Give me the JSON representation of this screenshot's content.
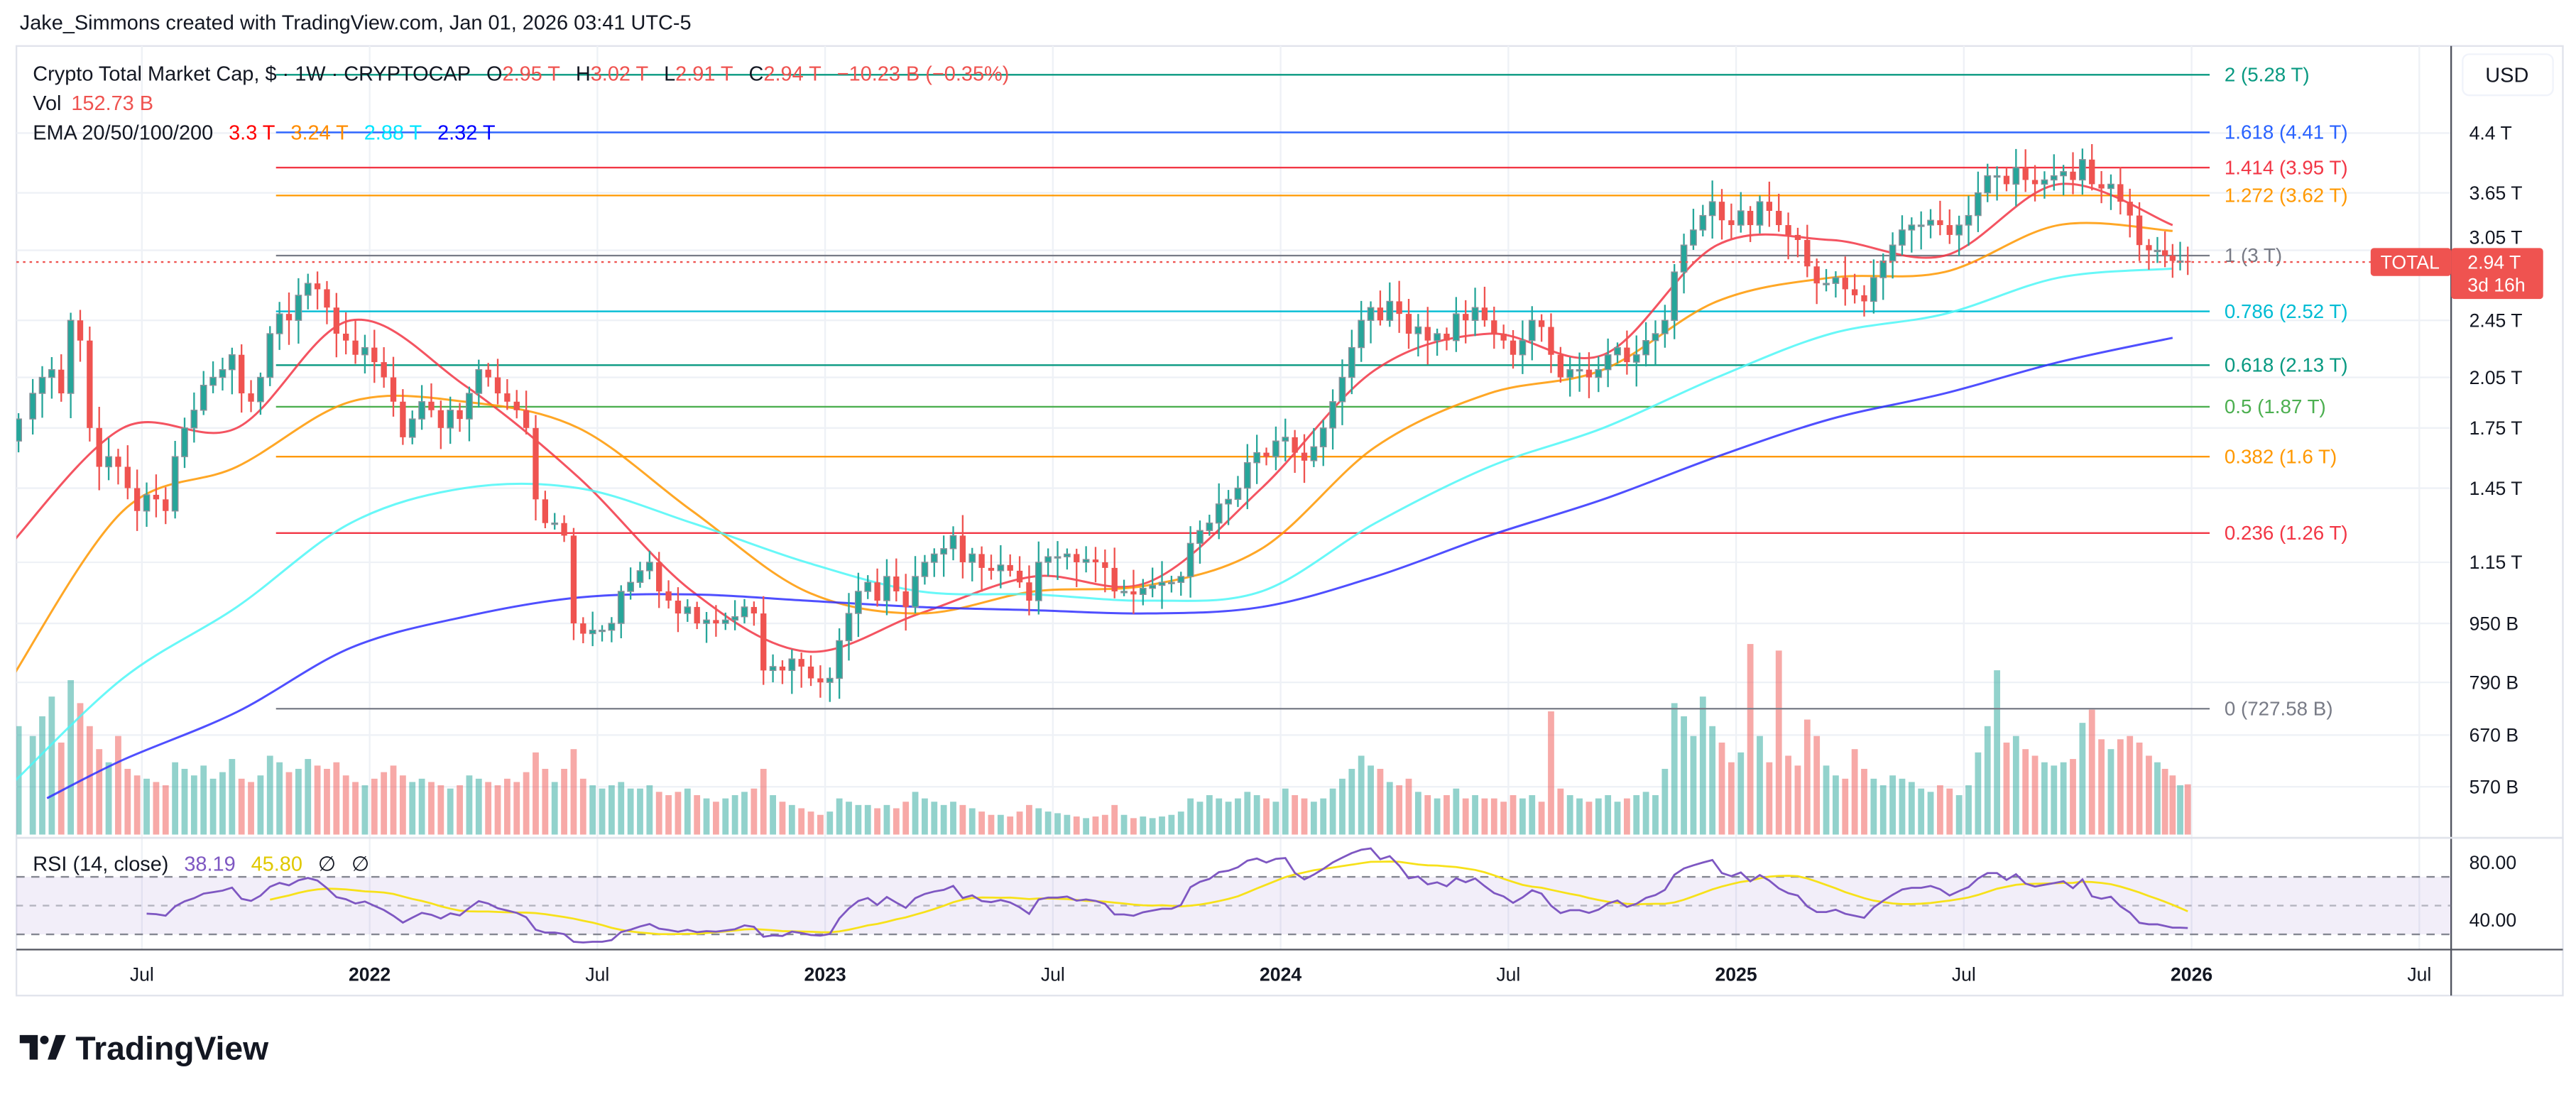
{
  "header": {
    "credit": "Jake_Simmons created with TradingView.com, Jan 01, 2026 03:41 UTC-5"
  },
  "legend": {
    "symbol": "Crypto Total Market Cap, $ · 1W · CRYPTOCAP",
    "o_label": "O",
    "o": "2.95 T",
    "h_label": "H",
    "h": "3.02 T",
    "l_label": "L",
    "l": "2.91 T",
    "c_label": "C",
    "c": "2.94 T",
    "change": "−10.23 B (−0.35%)",
    "vol_label": "Vol",
    "vol": "152.73 B",
    "ema_label": "EMA 20/50/100/200",
    "ema20": "3.3 T",
    "ema50": "3.24 T",
    "ema100": "2.88 T",
    "ema200": "2.32 T"
  },
  "price_axis": {
    "currency": "USD",
    "scale": "log",
    "ticks": [
      {
        "label": "4.4 T",
        "value": 4.4
      },
      {
        "label": "3.65 T",
        "value": 3.65
      },
      {
        "label": "3.05 T",
        "value": 3.05
      },
      {
        "label": "2.45 T",
        "value": 2.45
      },
      {
        "label": "2.05 T",
        "value": 2.05
      },
      {
        "label": "1.75 T",
        "value": 1.75
      },
      {
        "label": "1.45 T",
        "value": 1.45
      },
      {
        "label": "1.15 T",
        "value": 1.15
      },
      {
        "label": "950 B",
        "value": 0.95
      },
      {
        "label": "790 B",
        "value": 0.79
      },
      {
        "label": "670 B",
        "value": 0.67
      },
      {
        "label": "570 B",
        "value": 0.57
      }
    ]
  },
  "last_price": {
    "symbol": "TOTAL",
    "price": "2.94 T",
    "countdown": "3d 16h",
    "value": 2.94
  },
  "fib_levels": [
    {
      "label": "2 (5.28 T)",
      "value": 5.28,
      "color": "#089981"
    },
    {
      "label": "1.618 (4.41 T)",
      "value": 4.41,
      "color": "#2962ff"
    },
    {
      "label": "1.414 (3.95 T)",
      "value": 3.95,
      "color": "#f23645"
    },
    {
      "label": "1.272 (3.62 T)",
      "value": 3.62,
      "color": "#ff9800"
    },
    {
      "label": "1 (3 T)",
      "value": 3.0,
      "color": "#787b86"
    },
    {
      "label": "0.786 (2.52 T)",
      "value": 2.52,
      "color": "#00bcd4"
    },
    {
      "label": "0.618 (2.13 T)",
      "value": 2.13,
      "color": "#089981"
    },
    {
      "label": "0.5 (1.87 T)",
      "value": 1.87,
      "color": "#4caf50"
    },
    {
      "label": "0.382 (1.6 T)",
      "value": 1.6,
      "color": "#ff9800"
    },
    {
      "label": "0.236 (1.26 T)",
      "value": 1.26,
      "color": "#f23645"
    },
    {
      "label": "0 (727.58 B)",
      "value": 0.72758,
      "color": "#787b86"
    }
  ],
  "rsi": {
    "label": "RSI (14, close)",
    "value": "38.19",
    "ma_value": "45.80",
    "extra1": "∅",
    "extra2": "∅",
    "ticks": [
      {
        "label": "80.00",
        "value": 80
      },
      {
        "label": "40.00",
        "value": 40
      }
    ],
    "bands": [
      70,
      50,
      30
    ]
  },
  "time_axis": [
    {
      "label": "Jul",
      "date": "2021-07"
    },
    {
      "label": "2022",
      "date": "2022-01"
    },
    {
      "label": "Jul",
      "date": "2022-07"
    },
    {
      "label": "2023",
      "date": "2023-01"
    },
    {
      "label": "Jul",
      "date": "2023-07"
    },
    {
      "label": "2024",
      "date": "2024-01"
    },
    {
      "label": "Jul",
      "date": "2024-07"
    },
    {
      "label": "2025",
      "date": "2025-01"
    },
    {
      "label": "Jul",
      "date": "2025-07"
    },
    {
      "label": "2026",
      "date": "2026-01"
    },
    {
      "label": "Jul",
      "date": "2026-07"
    }
  ],
  "brand": {
    "name": "TradingView"
  },
  "colors": {
    "up": "#26a69a",
    "down": "#ef5350",
    "ema20": "#f23645",
    "ema50": "#ff9800",
    "ema100": "#4df7f7",
    "ema200": "#3030ff",
    "rsi": "#7e57c2",
    "rsi_ma": "#f7e11a",
    "grid": "#eef1f6"
  },
  "chart_data": {
    "type": "candlestick",
    "interval": "1W",
    "y_scale": "log",
    "weekly_closes_T": {
      "2021-03": [
        1.68,
        1.8
      ],
      "2021-04": [
        1.95,
        2.05,
        2.1,
        1.95
      ],
      "2021-05": [
        2.45,
        2.3,
        1.75,
        1.55
      ],
      "2021-06": [
        1.6,
        1.55,
        1.45,
        1.35
      ],
      "2021-07": [
        1.42,
        1.4,
        1.35,
        1.6
      ],
      "2021-08": [
        1.75,
        1.85,
        2.0,
        2.05
      ],
      "2021-09": [
        2.1,
        2.2,
        1.95,
        1.9
      ],
      "2021-10": [
        2.05,
        2.35,
        2.5,
        2.45
      ],
      "2021-11": [
        2.65,
        2.75,
        2.7,
        2.55
      ],
      "2021-12": [
        2.35,
        2.3,
        2.2,
        2.25
      ],
      "2022-01": [
        2.15,
        2.05,
        1.9,
        1.7
      ],
      "2022-02": [
        1.8,
        1.9,
        1.85,
        1.75
      ],
      "2022-03": [
        1.85,
        1.8,
        1.95,
        2.1
      ],
      "2022-04": [
        2.05,
        1.95,
        1.9,
        1.85
      ],
      "2022-05": [
        1.75,
        1.4,
        1.3,
        1.3
      ],
      "2022-06": [
        1.25,
        0.95,
        0.92,
        0.93
      ],
      "2022-07": [
        0.93,
        0.95,
        1.05,
        1.08
      ],
      "2022-08": [
        1.12,
        1.15,
        1.05,
        1.02
      ],
      "2022-09": [
        0.98,
        1.0,
        0.95,
        0.96
      ],
      "2022-10": [
        0.95,
        0.96,
        0.97,
        1.0
      ],
      "2022-11": [
        0.98,
        0.82,
        0.83,
        0.82
      ],
      "2022-12": [
        0.85,
        0.83,
        0.8,
        0.79
      ],
      "2023-01": [
        0.8,
        0.9,
        0.98,
        1.05
      ],
      "2023-02": [
        1.08,
        1.02,
        1.1,
        1.05
      ],
      "2023-03": [
        1.0,
        1.1,
        1.15,
        1.18
      ],
      "2023-04": [
        1.2,
        1.25,
        1.15,
        1.18
      ],
      "2023-05": [
        1.13,
        1.12,
        1.14,
        1.12
      ],
      "2023-06": [
        1.08,
        1.02,
        1.15,
        1.17
      ],
      "2023-07": [
        1.17,
        1.18,
        1.15,
        1.16
      ],
      "2023-08": [
        1.15,
        1.13,
        1.05,
        1.05
      ],
      "2023-09": [
        1.04,
        1.06,
        1.07,
        1.08
      ],
      "2023-10": [
        1.08,
        1.1,
        1.22,
        1.27
      ],
      "2023-11": [
        1.3,
        1.38,
        1.4,
        1.45
      ],
      "2023-12": [
        1.57,
        1.62,
        1.6,
        1.68
      ],
      "2024-01": [
        1.7,
        1.62,
        1.58,
        1.65
      ],
      "2024-02": [
        1.75,
        1.9,
        2.05,
        2.25
      ],
      "2024-03": [
        2.45,
        2.55,
        2.45,
        2.6
      ],
      "2024-04": [
        2.5,
        2.35,
        2.4,
        2.3
      ],
      "2024-05": [
        2.35,
        2.3,
        2.5,
        2.45
      ],
      "2024-06": [
        2.55,
        2.45,
        2.35,
        2.3
      ],
      "2024-07": [
        2.2,
        2.3,
        2.45,
        2.4
      ],
      "2024-08": [
        2.2,
        2.05,
        2.1,
        2.1
      ],
      "2024-09": [
        2.05,
        2.1,
        2.2,
        2.25
      ],
      "2024-10": [
        2.15,
        2.2,
        2.3,
        2.35
      ],
      "2024-11": [
        2.45,
        2.85,
        3.1,
        3.25
      ],
      "2024-12": [
        3.4,
        3.55,
        3.35,
        3.3
      ],
      "2025-01": [
        3.45,
        3.3,
        3.55,
        3.45
      ],
      "2025-02": [
        3.3,
        3.2,
        3.15,
        2.9
      ],
      "2025-03": [
        2.75,
        2.75,
        2.8,
        2.7
      ],
      "2025-04": [
        2.65,
        2.6,
        2.8,
        2.95
      ],
      "2025-05": [
        3.1,
        3.25,
        3.3,
        3.3
      ],
      "2025-06": [
        3.35,
        3.3,
        3.2,
        3.3
      ],
      "2025-07": [
        3.4,
        3.65,
        3.85,
        3.85
      ],
      "2025-08": [
        3.75,
        3.95,
        3.8,
        3.75
      ],
      "2025-09": [
        3.8,
        3.85,
        3.9,
        3.8
      ],
      "2025-10": [
        4.05,
        3.75,
        3.7,
        3.75
      ],
      "2025-11": [
        3.55,
        3.4,
        3.1,
        3.05
      ],
      "2025-12": [
        3.05,
        3.0,
        2.95,
        2.95,
        2.94
      ]
    },
    "weekly_volume_B": {
      "2021-03": [
        250,
        330
      ],
      "2021-04": [
        300,
        360,
        420,
        280
      ],
      "2021-05": [
        470,
        400,
        330,
        260
      ],
      "2021-06": [
        220,
        300,
        200,
        180
      ],
      "2021-07": [
        170,
        160,
        150,
        220
      ],
      "2021-08": [
        200,
        180,
        210,
        170
      ],
      "2021-09": [
        190,
        230,
        170,
        160
      ],
      "2021-10": [
        180,
        240,
        220,
        190
      ],
      "2021-11": [
        200,
        230,
        210,
        200
      ],
      "2021-12": [
        220,
        180,
        160,
        150
      ],
      "2022-01": [
        170,
        190,
        210,
        180
      ],
      "2022-02": [
        160,
        170,
        160,
        150
      ],
      "2022-03": [
        140,
        150,
        180,
        170
      ],
      "2022-04": [
        160,
        150,
        170,
        160
      ],
      "2022-05": [
        190,
        250,
        200,
        160
      ],
      "2022-06": [
        200,
        260,
        170,
        150
      ],
      "2022-07": [
        140,
        150,
        160,
        140
      ],
      "2022-08": [
        140,
        150,
        130,
        120
      ],
      "2022-09": [
        130,
        140,
        120,
        110
      ],
      "2022-10": [
        100,
        110,
        120,
        130
      ],
      "2022-11": [
        140,
        200,
        120,
        100
      ],
      "2022-12": [
        90,
        80,
        70,
        60
      ],
      "2023-01": [
        70,
        110,
        100,
        90
      ],
      "2023-02": [
        90,
        80,
        90,
        80
      ],
      "2023-03": [
        100,
        130,
        110,
        100
      ],
      "2023-04": [
        90,
        100,
        90,
        80
      ],
      "2023-05": [
        70,
        60,
        60,
        55
      ],
      "2023-06": [
        70,
        90,
        80,
        70
      ],
      "2023-07": [
        65,
        60,
        55,
        50
      ],
      "2023-08": [
        55,
        60,
        90,
        60
      ],
      "2023-09": [
        50,
        55,
        50,
        55
      ],
      "2023-10": [
        60,
        70,
        110,
        100
      ],
      "2023-11": [
        120,
        110,
        100,
        110
      ],
      "2023-12": [
        130,
        120,
        110,
        100
      ],
      "2024-01": [
        140,
        120,
        110,
        100
      ],
      "2024-02": [
        110,
        140,
        170,
        200
      ],
      "2024-03": [
        240,
        210,
        200,
        160
      ],
      "2024-04": [
        150,
        170,
        130,
        120
      ],
      "2024-05": [
        110,
        120,
        140,
        110
      ],
      "2024-06": [
        120,
        110,
        110,
        100
      ],
      "2024-07": [
        120,
        110,
        120,
        100
      ],
      "2024-08": [
        375,
        140,
        120,
        110
      ],
      "2024-09": [
        100,
        110,
        120,
        100
      ],
      "2024-10": [
        110,
        120,
        130,
        120
      ],
      "2024-11": [
        200,
        400,
        360,
        300
      ],
      "2024-12": [
        420,
        330,
        280,
        220
      ],
      "2025-01": [
        250,
        580,
        300,
        220
      ],
      "2025-02": [
        560,
        240,
        210,
        350
      ],
      "2025-03": [
        300,
        210,
        180,
        170
      ],
      "2025-04": [
        260,
        200,
        170,
        150
      ],
      "2025-05": [
        180,
        170,
        160,
        140
      ],
      "2025-06": [
        130,
        150,
        140,
        120
      ],
      "2025-07": [
        150,
        250,
        330,
        500
      ],
      "2025-08": [
        280,
        300,
        260,
        240
      ],
      "2025-09": [
        220,
        210,
        220,
        230
      ],
      "2025-10": [
        340,
        380,
        290,
        260
      ],
      "2025-11": [
        290,
        300,
        280,
        240
      ],
      "2025-12": [
        220,
        200,
        180,
        150,
        153
      ]
    },
    "ema_T": {
      "20": {
        "2021-03": 1.21,
        "2021-06": 1.75,
        "2021-09": 1.75,
        "2021-12": 2.45,
        "2022-03": 2.0,
        "2022-06": 1.5,
        "2022-09": 1.05,
        "2022-12": 0.87,
        "2023-03": 0.98,
        "2023-06": 1.1,
        "2023-09": 1.08,
        "2023-12": 1.45,
        "2024-03": 2.1,
        "2024-06": 2.35,
        "2024-09": 2.2,
        "2024-12": 3.1,
        "2025-03": 3.15,
        "2025-06": 3.0,
        "2025-09": 3.75,
        "2025-12": 3.3
      },
      "50": {
        "2021-03": 0.79,
        "2021-06": 1.35,
        "2021-09": 1.55,
        "2021-12": 1.9,
        "2022-03": 1.9,
        "2022-06": 1.75,
        "2022-09": 1.35,
        "2022-12": 1.05,
        "2023-03": 0.98,
        "2023-06": 1.05,
        "2023-09": 1.07,
        "2023-12": 1.2,
        "2024-03": 1.65,
        "2024-06": 1.95,
        "2024-09": 2.1,
        "2024-12": 2.6,
        "2025-03": 2.8,
        "2025-06": 2.85,
        "2025-09": 3.3,
        "2025-12": 3.24
      },
      "100": {
        "2021-03": 0.57,
        "2021-06": 0.8,
        "2021-09": 1.0,
        "2021-12": 1.3,
        "2022-03": 1.45,
        "2022-06": 1.45,
        "2022-09": 1.3,
        "2022-12": 1.15,
        "2023-03": 1.05,
        "2023-06": 1.04,
        "2023-09": 1.02,
        "2023-12": 1.05,
        "2024-03": 1.3,
        "2024-06": 1.55,
        "2024-09": 1.75,
        "2024-12": 2.05,
        "2025-03": 2.35,
        "2025-06": 2.5,
        "2025-09": 2.8,
        "2025-12": 2.88
      },
      "200": {
        "2021-04": 0.55,
        "2021-06": 0.62,
        "2021-09": 0.72,
        "2021-12": 0.88,
        "2022-03": 0.97,
        "2022-06": 1.03,
        "2022-09": 1.04,
        "2022-12": 1.02,
        "2023-03": 1.0,
        "2023-06": 0.99,
        "2023-09": 0.98,
        "2023-12": 1.0,
        "2024-03": 1.1,
        "2024-06": 1.25,
        "2024-09": 1.4,
        "2024-12": 1.6,
        "2025-03": 1.8,
        "2025-06": 1.95,
        "2025-09": 2.15,
        "2025-12": 2.32
      }
    }
  }
}
